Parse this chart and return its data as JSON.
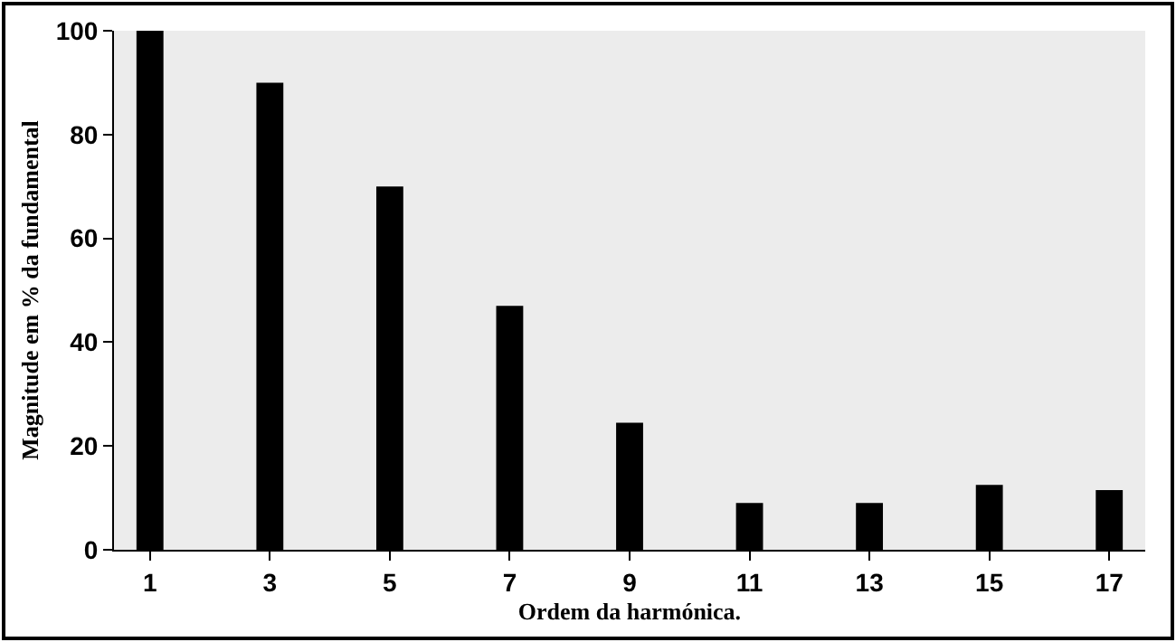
{
  "chart_data": {
    "type": "bar",
    "xlabel": "Ordem da harmónica.",
    "ylabel": "Magnitude em % da fundamental",
    "x": [
      1,
      3,
      5,
      7,
      9,
      11,
      13,
      15,
      17
    ],
    "values": [
      100,
      90,
      70,
      47,
      24.5,
      9,
      9,
      12.5,
      11.5
    ],
    "color": "#000000",
    "xlim": [
      0.4,
      17.6
    ],
    "xticks": [
      1,
      3,
      5,
      7,
      9,
      11,
      13,
      15,
      17
    ],
    "ylim": [
      0,
      100
    ],
    "yticks": [
      0,
      20,
      40,
      60,
      80,
      100
    ],
    "grid": false
  }
}
